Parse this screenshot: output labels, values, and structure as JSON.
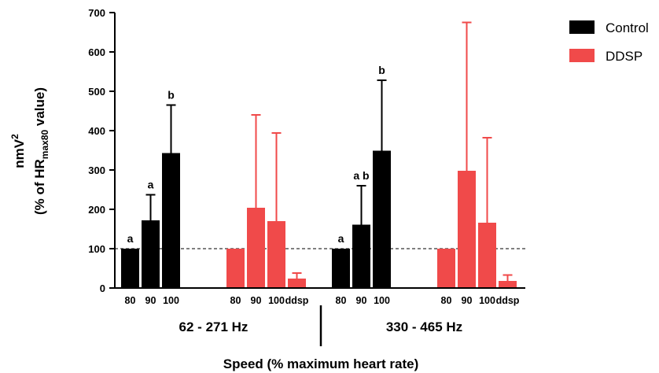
{
  "chart_data": {
    "type": "bar",
    "ylabel_line1": "nmV",
    "ylabel_line1_sup": "2",
    "ylabel_line2_pre": "(% of HR",
    "ylabel_line2_sub": "max80",
    "ylabel_line2_post": " value)",
    "xlabel": "Speed (% maximum heart rate)",
    "ylim": [
      0,
      700
    ],
    "yticks": [
      0,
      100,
      200,
      300,
      400,
      500,
      600,
      700
    ],
    "reference_line": 100,
    "legend_position": "top-right",
    "series": [
      {
        "name": "Control",
        "color": "#000000"
      },
      {
        "name": "DDSP",
        "color": "#f04a4a"
      }
    ],
    "groups": [
      {
        "label": "62 - 271 Hz",
        "bars": [
          {
            "series": "Control",
            "category": "80",
            "value": 100,
            "error": 0,
            "sig": "a"
          },
          {
            "series": "Control",
            "category": "90",
            "value": 172,
            "error": 65,
            "sig": "a"
          },
          {
            "series": "Control",
            "category": "100",
            "value": 343,
            "error": 122,
            "sig": "b"
          },
          {
            "series": "DDSP",
            "category": "80",
            "value": 100,
            "error": 0,
            "sig": ""
          },
          {
            "series": "DDSP",
            "category": "90",
            "value": 204,
            "error": 236,
            "sig": ""
          },
          {
            "series": "DDSP",
            "category": "100",
            "value": 170,
            "error": 224,
            "sig": ""
          },
          {
            "series": "DDSP",
            "category": "ddsp",
            "value": 24,
            "error": 14,
            "sig": ""
          }
        ]
      },
      {
        "label": "330 - 465 Hz",
        "bars": [
          {
            "series": "Control",
            "category": "80",
            "value": 100,
            "error": 0,
            "sig": "a"
          },
          {
            "series": "Control",
            "category": "90",
            "value": 161,
            "error": 99,
            "sig": "a b"
          },
          {
            "series": "Control",
            "category": "100",
            "value": 349,
            "error": 179,
            "sig": "b"
          },
          {
            "series": "DDSP",
            "category": "80",
            "value": 100,
            "error": 0,
            "sig": ""
          },
          {
            "series": "DDSP",
            "category": "90",
            "value": 298,
            "error": 377,
            "sig": ""
          },
          {
            "series": "DDSP",
            "category": "100",
            "value": 166,
            "error": 216,
            "sig": ""
          },
          {
            "series": "DDSP",
            "category": "ddsp",
            "value": 18,
            "error": 15,
            "sig": ""
          }
        ]
      }
    ]
  }
}
